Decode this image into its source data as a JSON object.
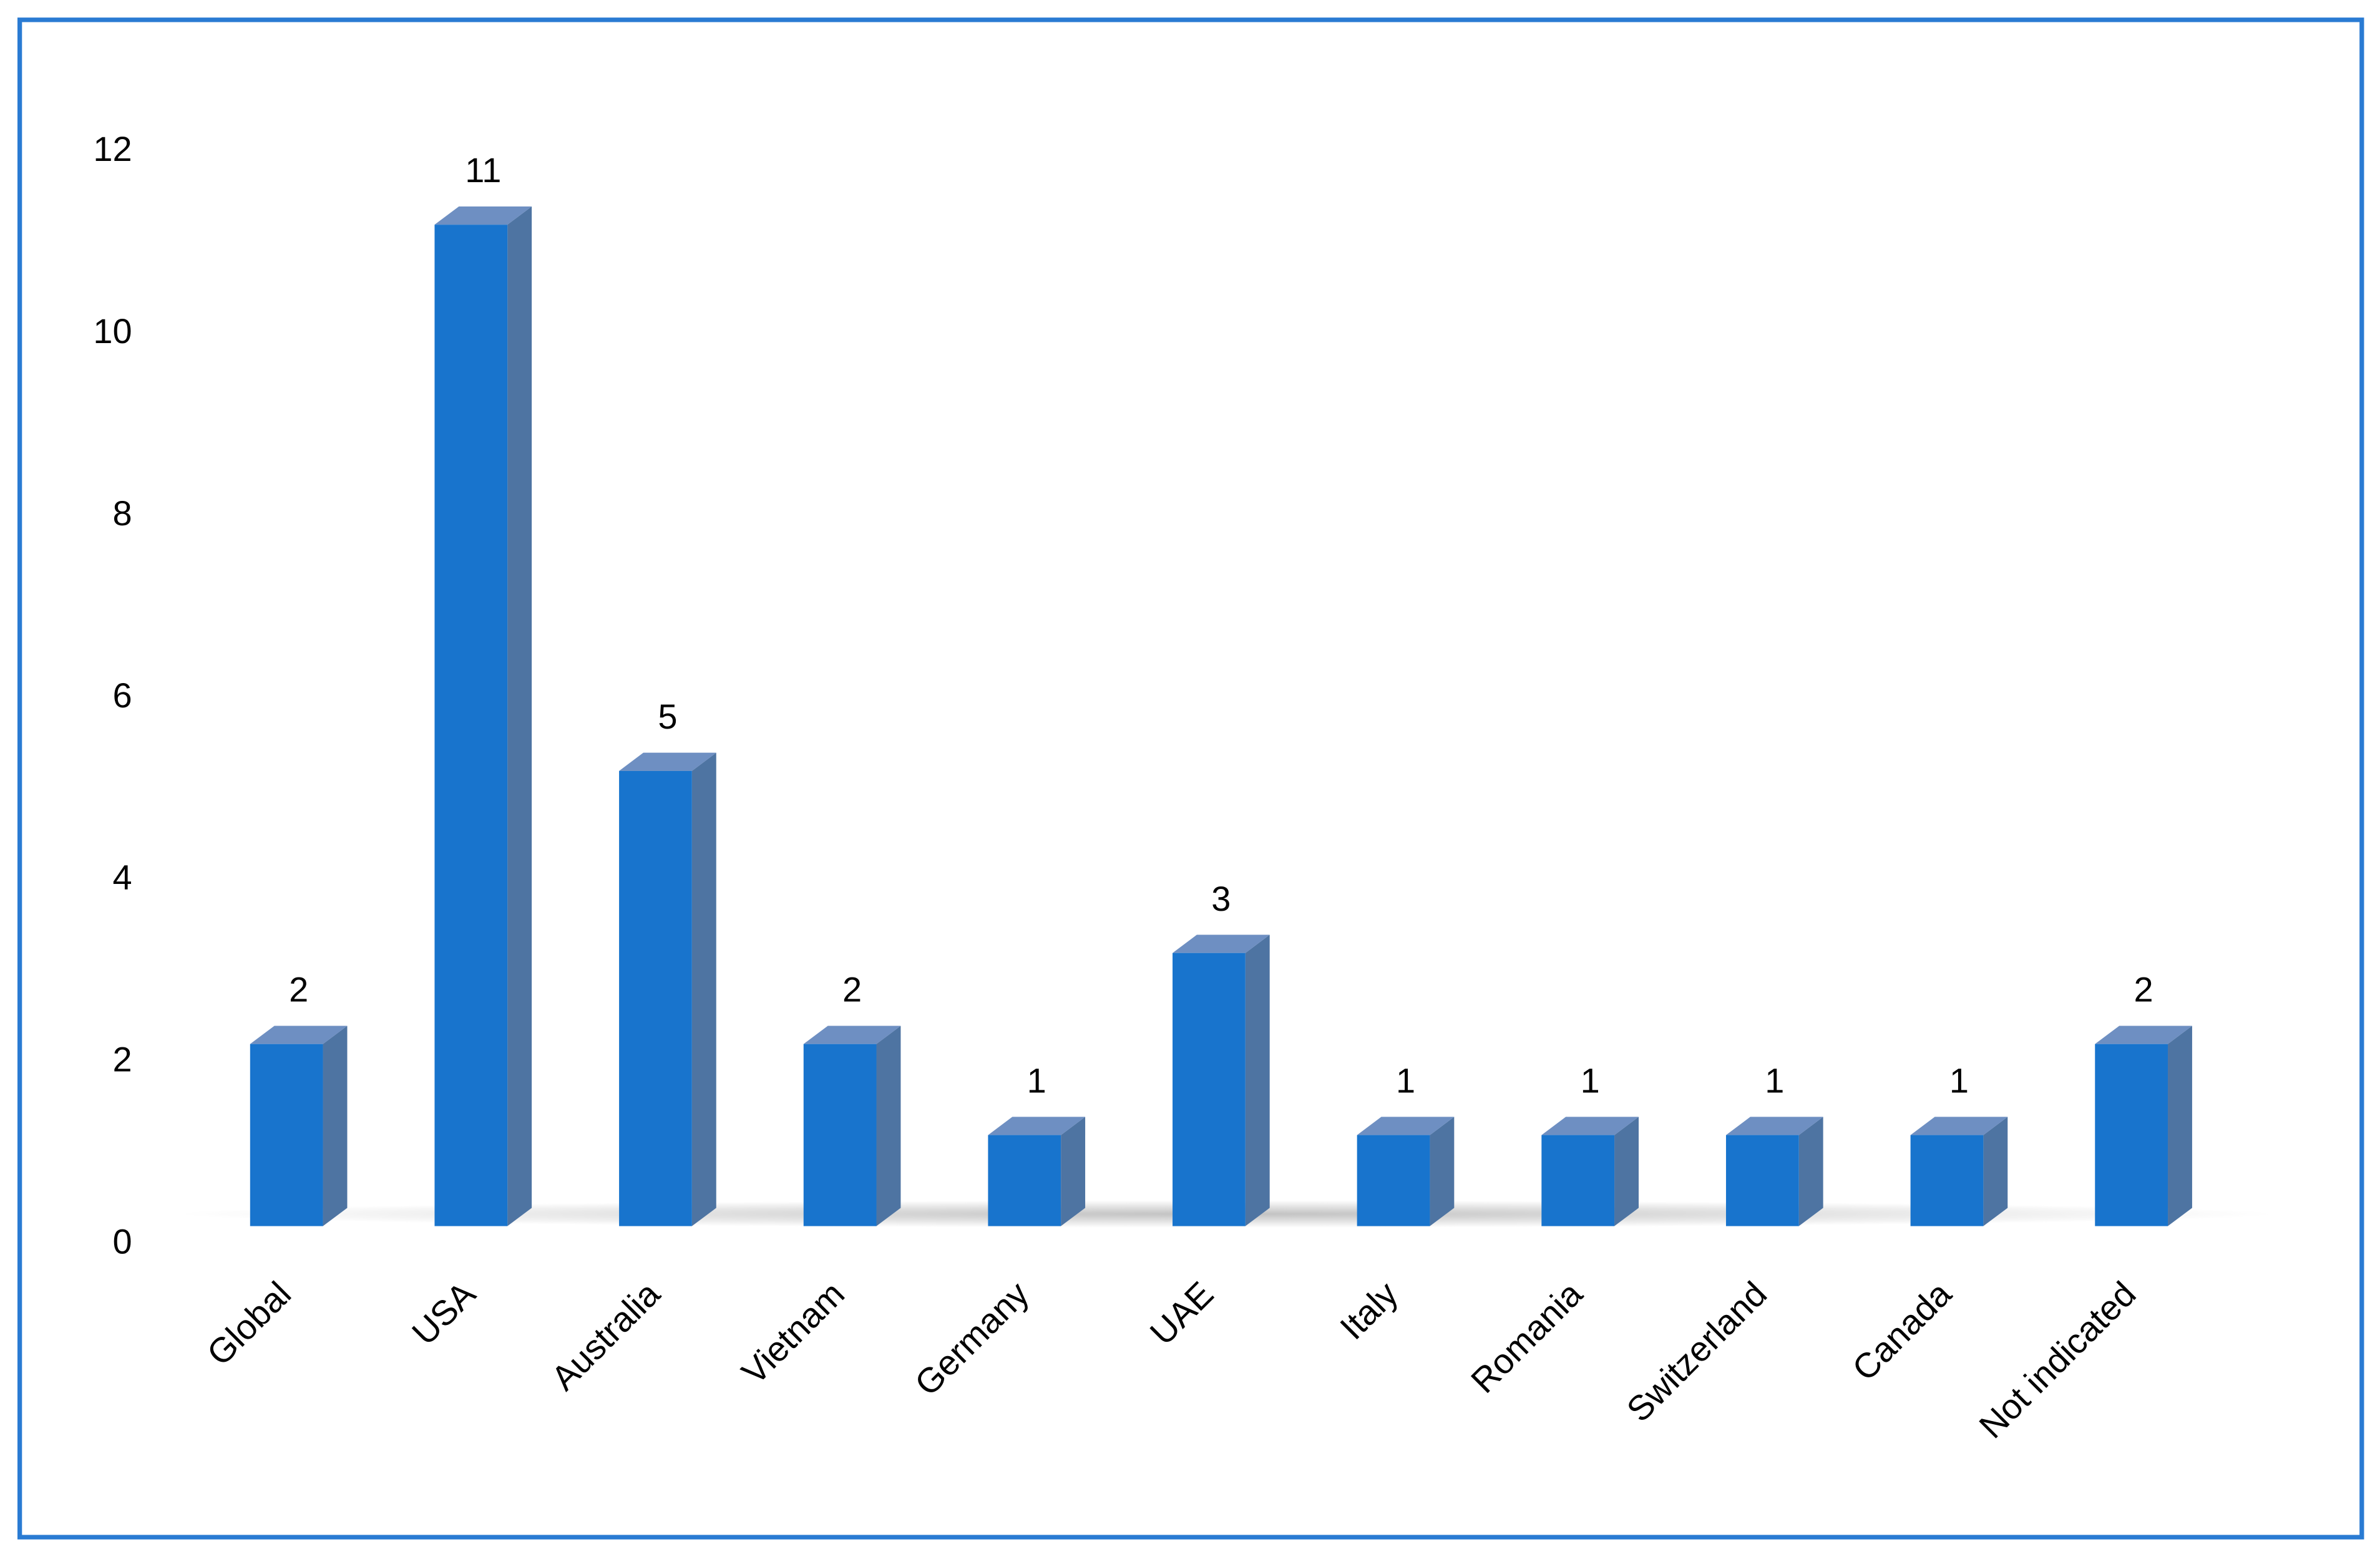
{
  "chart_data": {
    "type": "bar3d",
    "categories": [
      "Global",
      "USA",
      "Australia",
      "Vietnam",
      "Germany",
      "UAE",
      "Italy",
      "Romania",
      "Switzerland",
      "Canada",
      "Not indicated"
    ],
    "values": [
      2,
      11,
      5,
      2,
      1,
      3,
      1,
      1,
      1,
      1,
      2
    ],
    "color": "#1874cd",
    "ylim": [
      0,
      12
    ],
    "yticks": [
      0,
      2,
      4,
      6,
      8,
      10,
      12
    ],
    "grid": false
  }
}
